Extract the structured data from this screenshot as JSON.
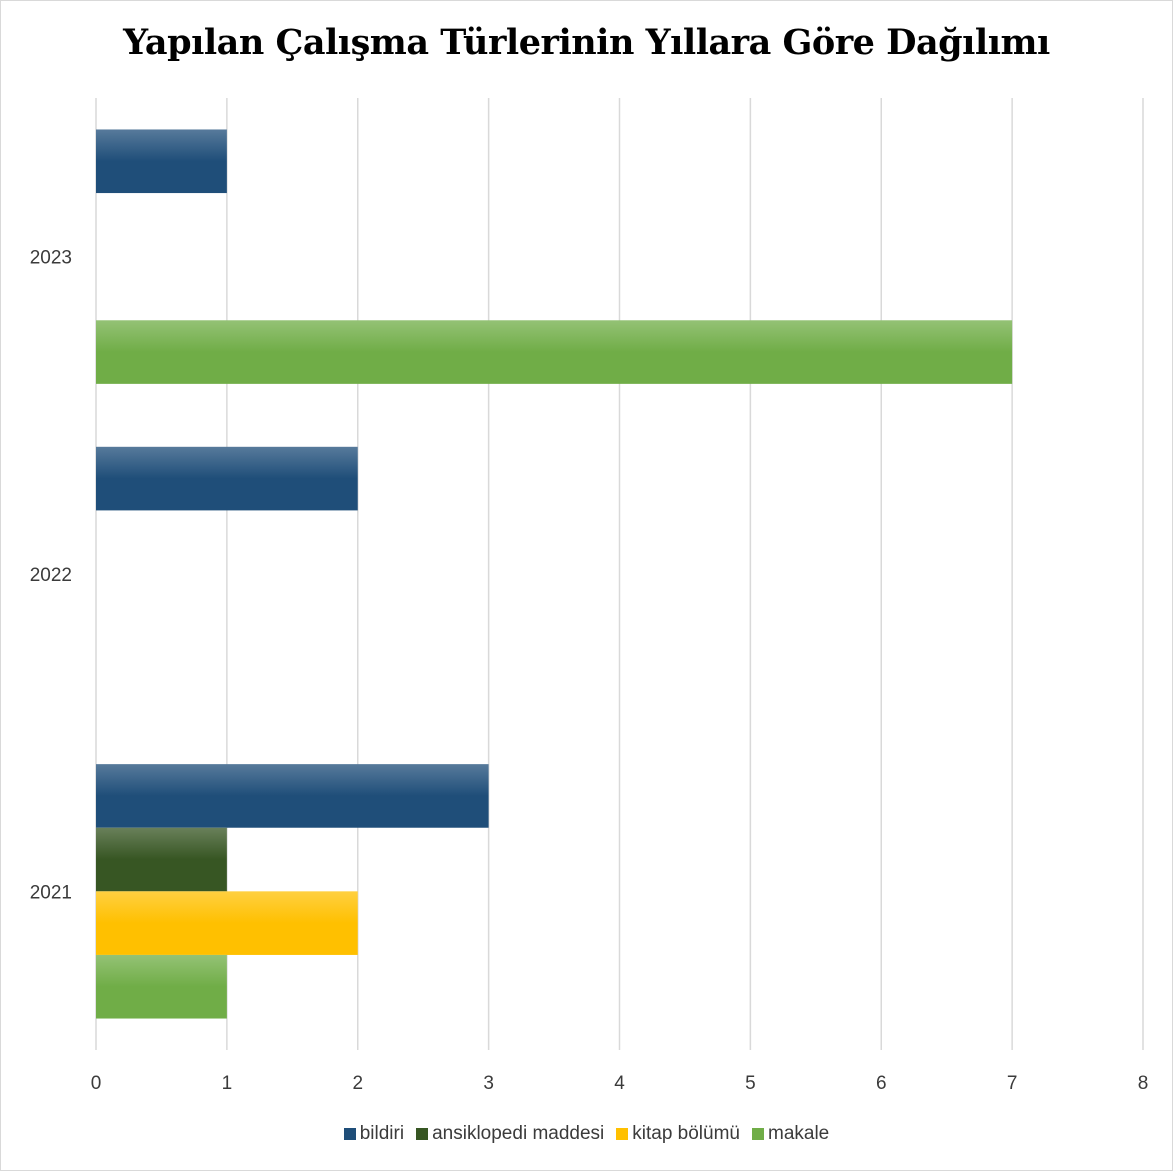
{
  "chart_data": {
    "type": "bar",
    "orientation": "horizontal",
    "title": "Yapılan Çalışma Türlerinin Yıllara Göre Dağılımı",
    "categories": [
      "2021",
      "2022",
      "2023"
    ],
    "xlim": [
      0,
      8
    ],
    "x_ticks": [
      "0",
      "1",
      "2",
      "3",
      "4",
      "5",
      "6",
      "7",
      "8"
    ],
    "grid": true,
    "legend_position": "bottom",
    "series": [
      {
        "name": "bildiri",
        "color": "#1f4e79",
        "values": [
          3,
          2,
          1
        ]
      },
      {
        "name": "ansiklopedi maddesi",
        "color": "#375623",
        "values": [
          1,
          0,
          0
        ]
      },
      {
        "name": "kitap bölümü",
        "color": "#ffc000",
        "values": [
          2,
          0,
          0
        ]
      },
      {
        "name": "makale",
        "color": "#70ad47",
        "values": [
          1,
          0,
          7
        ]
      }
    ]
  }
}
